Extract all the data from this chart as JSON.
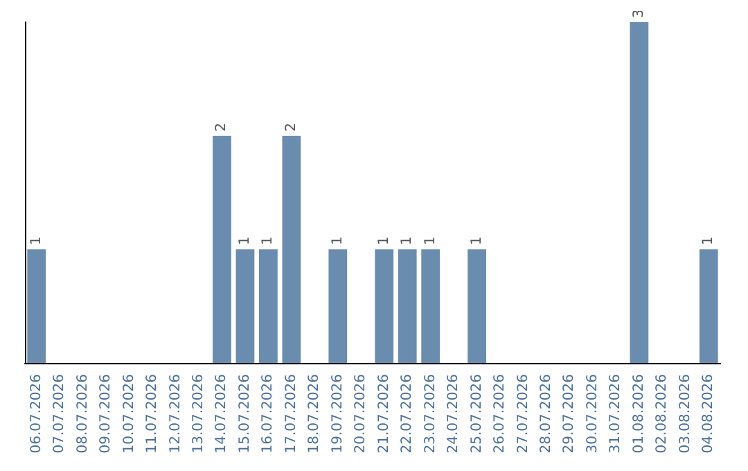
{
  "chart_data": {
    "type": "bar",
    "categories": [
      "06.07.2026",
      "07.07.2026",
      "08.07.2026",
      "09.07.2026",
      "10.07.2026",
      "11.07.2026",
      "12.07.2026",
      "13.07.2026",
      "14.07.2026",
      "15.07.2026",
      "16.07.2026",
      "17.07.2026",
      "18.07.2026",
      "19.07.2026",
      "20.07.2026",
      "21.07.2026",
      "22.07.2026",
      "23.07.2026",
      "24.07.2026",
      "25.07.2026",
      "26.07.2026",
      "27.07.2026",
      "28.07.2026",
      "29.07.2026",
      "30.07.2026",
      "31.07.2026",
      "01.08.2026",
      "02.08.2026",
      "03.08.2026",
      "04.08.2026"
    ],
    "values": [
      1,
      0,
      0,
      0,
      0,
      0,
      0,
      0,
      2,
      1,
      1,
      2,
      0,
      1,
      0,
      1,
      1,
      1,
      0,
      1,
      0,
      0,
      0,
      0,
      0,
      0,
      3,
      0,
      0,
      1
    ],
    "value_labels": [
      "1",
      null,
      null,
      null,
      null,
      null,
      null,
      null,
      "2",
      "1",
      "1",
      "2",
      null,
      "1",
      null,
      "1",
      "1",
      "1",
      null,
      "1",
      null,
      null,
      null,
      null,
      null,
      null,
      "3",
      null,
      null,
      "1"
    ],
    "color": "#6a8caf",
    "tick_labels": "x"
  }
}
